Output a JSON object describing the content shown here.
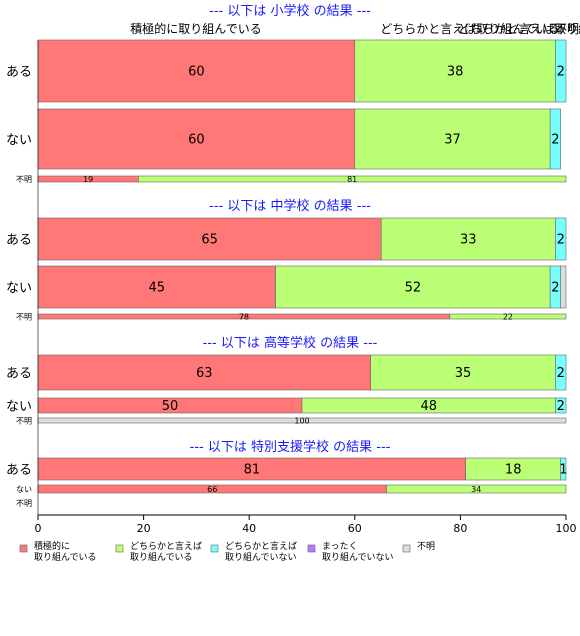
{
  "chart_data": {
    "type": "bar",
    "orientation": "horizontal",
    "stacked": true,
    "xlim": [
      0,
      100
    ],
    "x_ticks": [
      0,
      20,
      40,
      60,
      80,
      100
    ],
    "colors": [
      "#ff7777",
      "#bbff77",
      "#77ffff",
      "#bb77ff",
      "#dddddd"
    ],
    "header_labels": {
      "positive": "積極的に取り組んでいる",
      "somewhat": "どちらかと言えば取り組んでいる",
      "rest": "どちらかと言えば取り組んでいない",
      "none": "まったく取り組んでいない",
      "unknown": "不明"
    },
    "legend": [
      {
        "line1": "積極的に",
        "line2": "取り組んでいる"
      },
      {
        "line1": "どちらかと言えば",
        "line2": "取り組んでいる"
      },
      {
        "line1": "どちらかと言えば",
        "line2": "取り組んでいない"
      },
      {
        "line1": "まったく",
        "line2": "取り組んでいない"
      },
      {
        "line1": "不明",
        "line2": ""
      }
    ],
    "groups": [
      {
        "title": "--- 以下は 小学校 の結果 ---",
        "rows": [
          {
            "label": "ある",
            "values": [
              60,
              38,
              2,
              0,
              0
            ],
            "shown": [
              "60",
              "38",
              "2",
              "",
              ""
            ]
          },
          {
            "label": "ない",
            "values": [
              60,
              37,
              2,
              0,
              0
            ],
            "shown": [
              "60",
              "37",
              "2",
              "",
              ""
            ]
          },
          {
            "label": "不明",
            "values": [
              19,
              81,
              0,
              0,
              0
            ],
            "shown": [
              "19",
              "81",
              "",
              "",
              ""
            ]
          }
        ]
      },
      {
        "title": "--- 以下は 中学校 の結果 ---",
        "rows": [
          {
            "label": "ある",
            "values": [
              65,
              33,
              2,
              0,
              0
            ],
            "shown": [
              "65",
              "33",
              "2",
              "",
              ""
            ]
          },
          {
            "label": "ない",
            "values": [
              45,
              52,
              2,
              0,
              1
            ],
            "shown": [
              "45",
              "52",
              "2",
              "",
              ""
            ]
          },
          {
            "label": "不明",
            "values": [
              78,
              22,
              0,
              0,
              0
            ],
            "shown": [
              "78",
              "22",
              "",
              "",
              ""
            ]
          }
        ]
      },
      {
        "title": "--- 以下は 高等学校 の結果 ---",
        "rows": [
          {
            "label": "ある",
            "values": [
              63,
              35,
              2,
              0,
              0
            ],
            "shown": [
              "63",
              "35",
              "2",
              "",
              ""
            ]
          },
          {
            "label": "ない",
            "values": [
              50,
              48,
              2,
              0,
              0
            ],
            "shown": [
              "50",
              "48",
              "2",
              "",
              ""
            ]
          },
          {
            "label": "不明",
            "values": [
              0,
              0,
              0,
              0,
              100
            ],
            "shown": [
              "",
              "",
              "",
              "",
              "100"
            ]
          }
        ]
      },
      {
        "title": "--- 以下は 特別支援学校 の結果 ---",
        "rows": [
          {
            "label": "ある",
            "values": [
              81,
              18,
              1,
              0,
              0
            ],
            "shown": [
              "81",
              "18",
              "1",
              "",
              ""
            ]
          },
          {
            "label": "ない",
            "values": [
              66,
              34,
              0,
              0,
              0
            ],
            "shown": [
              "66",
              "34",
              "",
              "",
              ""
            ]
          },
          {
            "label": "不明",
            "values": [
              0,
              0,
              0,
              0,
              0
            ],
            "shown": [
              "",
              "",
              "",
              "",
              ""
            ]
          }
        ]
      }
    ]
  }
}
